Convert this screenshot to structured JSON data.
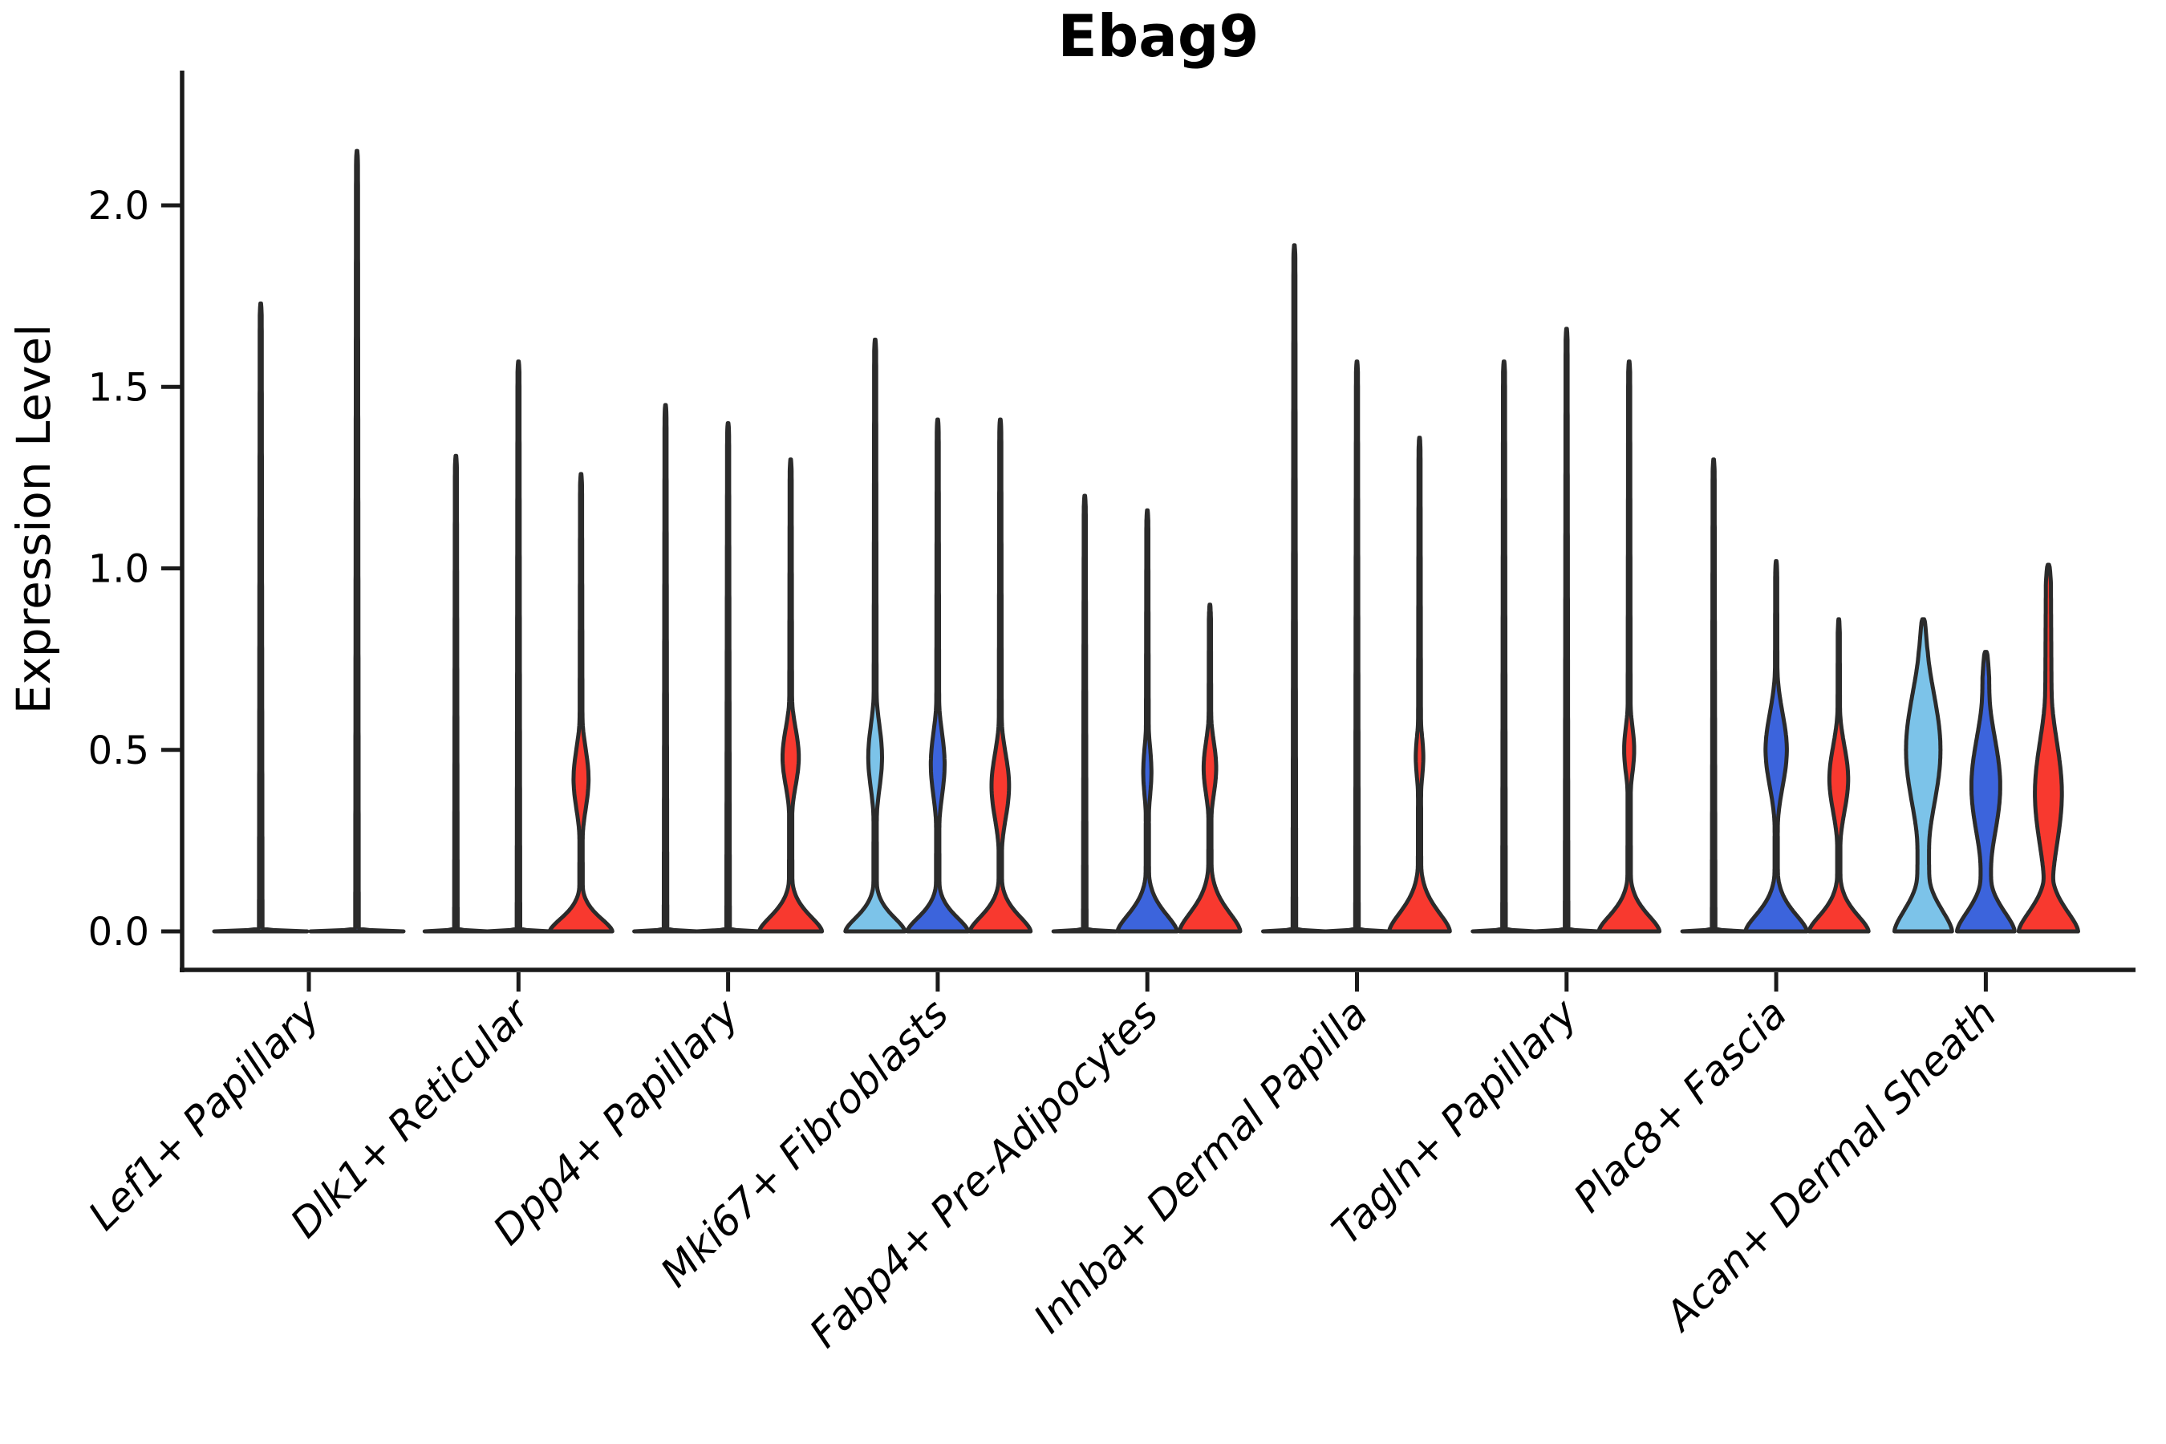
{
  "title": "Ebag9",
  "y_axis": {
    "label": "Expression Level",
    "tick_labels": [
      "0.0",
      "0.5",
      "1.0",
      "1.5",
      "2.0"
    ]
  },
  "colors": {
    "split_fills": [
      "#7CC3E9",
      "#3C64DC",
      "#F8392F"
    ],
    "outline": "#2B2B2B",
    "axis": "#1A1A1A",
    "text": "#000000",
    "background": "#FFFFFF"
  },
  "chart_data": {
    "type": "violin",
    "title": "Ebag9",
    "ylabel": "Expression Level",
    "xlabel": "",
    "ylim": [
      -0.1,
      2.37
    ],
    "yticks": [
      0,
      0.5,
      1.0,
      1.5,
      2.0
    ],
    "ytick_labels": [
      "0.0",
      "0.5",
      "1.0",
      "1.5",
      "2.0"
    ],
    "grid": false,
    "legend_position": "none",
    "x_tick_rotation_deg": 45,
    "split_colors": [
      "#7CC3E9",
      "#3C64DC",
      "#F8392F"
    ],
    "categories": [
      "Lef1+ Papillary",
      "Dlk1+ Reticular",
      "Dpp4+ Papillary",
      "Mki67+ Fibroblasts",
      "Fabp4+ Pre-Adipocytes",
      "Inhba+ Dermal Papilla",
      "Tagln+ Papillary",
      "Plac8+ Fascia",
      "Acan+ Dermal Sheath"
    ],
    "series_max_expression": [
      [
        1.73,
        2.15,
        null
      ],
      [
        1.31,
        1.57,
        1.26
      ],
      [
        1.45,
        1.4,
        1.3
      ],
      [
        1.63,
        1.41,
        1.41
      ],
      [
        1.2,
        1.16,
        0.9
      ],
      [
        1.89,
        1.57,
        1.36
      ],
      [
        1.57,
        1.66,
        1.57
      ],
      [
        1.3,
        1.02,
        0.86
      ],
      [
        0.86,
        0.77,
        1.01
      ]
    ],
    "violins": [
      [
        {
          "split": 0,
          "max": 1.73,
          "flat": true
        },
        {
          "split": 1,
          "max": 2.15,
          "flat": true
        }
      ],
      [
        {
          "split": 0,
          "max": 1.31,
          "flat": true
        },
        {
          "split": 1,
          "max": 1.57,
          "flat": true
        },
        {
          "split": 2,
          "max": 1.26,
          "base": {
            "h": 0.13,
            "w": 1.0
          },
          "bulges": [
            {
              "c": 0.42,
              "s": 0.16,
              "w": 0.24
            }
          ]
        }
      ],
      [
        {
          "split": 0,
          "max": 1.45,
          "flat": true
        },
        {
          "split": 1,
          "max": 1.4,
          "flat": true
        },
        {
          "split": 2,
          "max": 1.3,
          "base": {
            "h": 0.15,
            "w": 1.0
          },
          "bulges": [
            {
              "c": 0.48,
              "s": 0.15,
              "w": 0.26
            }
          ]
        }
      ],
      [
        {
          "split": 0,
          "max": 1.63,
          "base": {
            "h": 0.14,
            "w": 0.95
          },
          "bulges": [
            {
              "c": 0.48,
              "s": 0.17,
              "w": 0.22
            }
          ]
        },
        {
          "split": 1,
          "max": 1.41,
          "base": {
            "h": 0.14,
            "w": 0.97
          },
          "bulges": [
            {
              "c": 0.46,
              "s": 0.17,
              "w": 0.22
            }
          ]
        },
        {
          "split": 2,
          "max": 1.41,
          "base": {
            "h": 0.15,
            "w": 0.97
          },
          "bulges": [
            {
              "c": 0.4,
              "s": 0.17,
              "w": 0.28
            }
          ]
        }
      ],
      [
        {
          "split": 0,
          "max": 1.2,
          "flat": true
        },
        {
          "split": 1,
          "max": 1.16,
          "base": {
            "h": 0.17,
            "w": 0.95
          },
          "bulges": [
            {
              "c": 0.44,
              "s": 0.14,
              "w": 0.13
            }
          ]
        },
        {
          "split": 2,
          "max": 0.9,
          "base": {
            "h": 0.19,
            "w": 0.97
          },
          "bulges": [
            {
              "c": 0.45,
              "s": 0.14,
              "w": 0.2
            }
          ]
        }
      ],
      [
        {
          "split": 0,
          "max": 1.89,
          "flat": true
        },
        {
          "split": 1,
          "max": 1.57,
          "flat": true
        },
        {
          "split": 2,
          "max": 1.36,
          "base": {
            "h": 0.19,
            "w": 0.97
          },
          "bulges": [
            {
              "c": 0.48,
              "s": 0.12,
              "w": 0.12
            }
          ]
        }
      ],
      [
        {
          "split": 0,
          "max": 1.57,
          "flat": true
        },
        {
          "split": 1,
          "max": 1.66,
          "flat": true
        },
        {
          "split": 2,
          "max": 1.57,
          "base": {
            "h": 0.16,
            "w": 0.97
          },
          "bulges": [
            {
              "c": 0.5,
              "s": 0.13,
              "w": 0.16
            }
          ]
        }
      ],
      [
        {
          "split": 0,
          "max": 1.3,
          "flat": true
        },
        {
          "split": 1,
          "max": 1.02,
          "base": {
            "h": 0.17,
            "w": 0.98
          },
          "bulges": [
            {
              "c": 0.5,
              "s": 0.19,
              "w": 0.34
            }
          ]
        },
        {
          "split": 2,
          "max": 0.86,
          "base": {
            "h": 0.16,
            "w": 0.95
          },
          "bulges": [
            {
              "c": 0.42,
              "s": 0.17,
              "w": 0.3
            }
          ]
        }
      ],
      [
        {
          "split": 0,
          "max": 0.86,
          "spike": 8.0,
          "cap": 0.09,
          "base": {
            "h": 0.22,
            "w": 0.92
          },
          "bulges": [
            {
              "c": 0.5,
              "s": 0.3,
              "w": 0.55
            }
          ]
        },
        {
          "split": 1,
          "max": 0.77,
          "spike": 7.0,
          "cap": 0.07,
          "base": {
            "h": 0.2,
            "w": 0.92
          },
          "bulges": [
            {
              "c": 0.4,
              "s": 0.26,
              "w": 0.46
            }
          ]
        },
        {
          "split": 2,
          "max": 1.01,
          "spike": 5.5,
          "cap": 0.05,
          "base": {
            "h": 0.2,
            "w": 0.95
          },
          "bulges": [
            {
              "c": 0.38,
              "s": 0.28,
              "w": 0.43
            }
          ]
        }
      ]
    ]
  }
}
